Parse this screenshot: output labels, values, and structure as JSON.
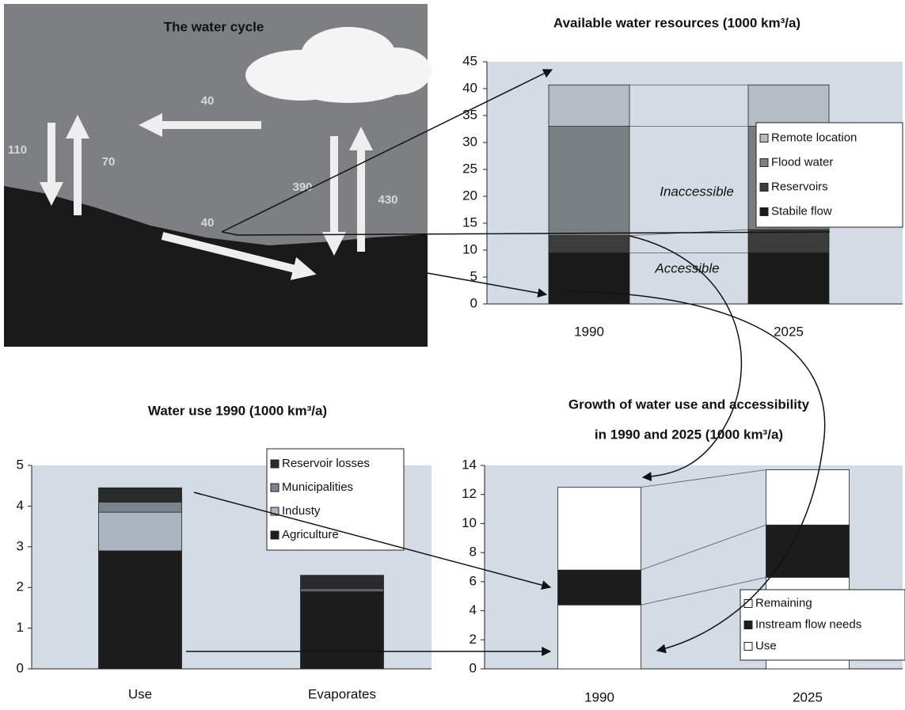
{
  "water_cycle": {
    "title": "The water cycle",
    "flows": [
      40,
      110,
      70,
      390,
      430,
      40
    ]
  },
  "chart_data": [
    {
      "type": "bar",
      "stacked": true,
      "title": "Available water resources (1000 km³/a)",
      "categories": [
        "1990",
        "2025"
      ],
      "series": [
        {
          "name": "Stabile flow",
          "color": "#1a1a1a",
          "values": [
            9.5,
            9.5
          ]
        },
        {
          "name": "Reservoirs",
          "color": "#3c3c3c",
          "values": [
            3.2,
            4.3
          ]
        },
        {
          "name": "Flood water",
          "color": "#7a7f84",
          "values": [
            20.3,
            19.2
          ]
        },
        {
          "name": "Remote location",
          "color": "#b4bcc4",
          "values": [
            7.7,
            7.7
          ]
        }
      ],
      "annotations": [
        "Inaccessible",
        "Accessible"
      ],
      "ylim": [
        0,
        45
      ],
      "yticks": [
        0,
        5,
        10,
        15,
        20,
        25,
        30,
        35,
        40,
        45
      ]
    },
    {
      "type": "bar",
      "stacked": true,
      "title": "Water use 1990 (1000 km³/a)",
      "categories": [
        "Use",
        "Evaporates"
      ],
      "series": [
        {
          "name": "Agriculture",
          "color": "#1c1c1c",
          "values": [
            2.9,
            1.9
          ]
        },
        {
          "name": "Industy",
          "color": "#aab5c0",
          "values": [
            0.95,
            0.03
          ]
        },
        {
          "name": "Municipalities",
          "color": "#7b848c",
          "values": [
            0.25,
            0.04
          ]
        },
        {
          "name": "Reservoir losses",
          "color": "#2a2a2a",
          "values": [
            0.35,
            0.33
          ]
        }
      ],
      "ylim": [
        0,
        5
      ],
      "yticks": [
        0,
        1,
        2,
        3,
        4,
        5
      ]
    },
    {
      "type": "bar",
      "stacked": true,
      "title": [
        "Growth of water use and accessibility",
        "in 1990 and 2025 (1000 km³/a)"
      ],
      "categories": [
        "1990",
        "2025"
      ],
      "series": [
        {
          "name": "Use",
          "color": "#ffffff",
          "values": [
            4.4,
            6.3
          ]
        },
        {
          "name": "Instream flow needs",
          "color": "#1c1c1c",
          "values": [
            2.4,
            3.6
          ]
        },
        {
          "name": "Remaining",
          "color": "#ffffff",
          "values": [
            5.7,
            3.8
          ]
        }
      ],
      "ylim": [
        0,
        14
      ],
      "yticks": [
        0,
        2,
        4,
        6,
        8,
        10,
        12,
        14
      ]
    }
  ]
}
